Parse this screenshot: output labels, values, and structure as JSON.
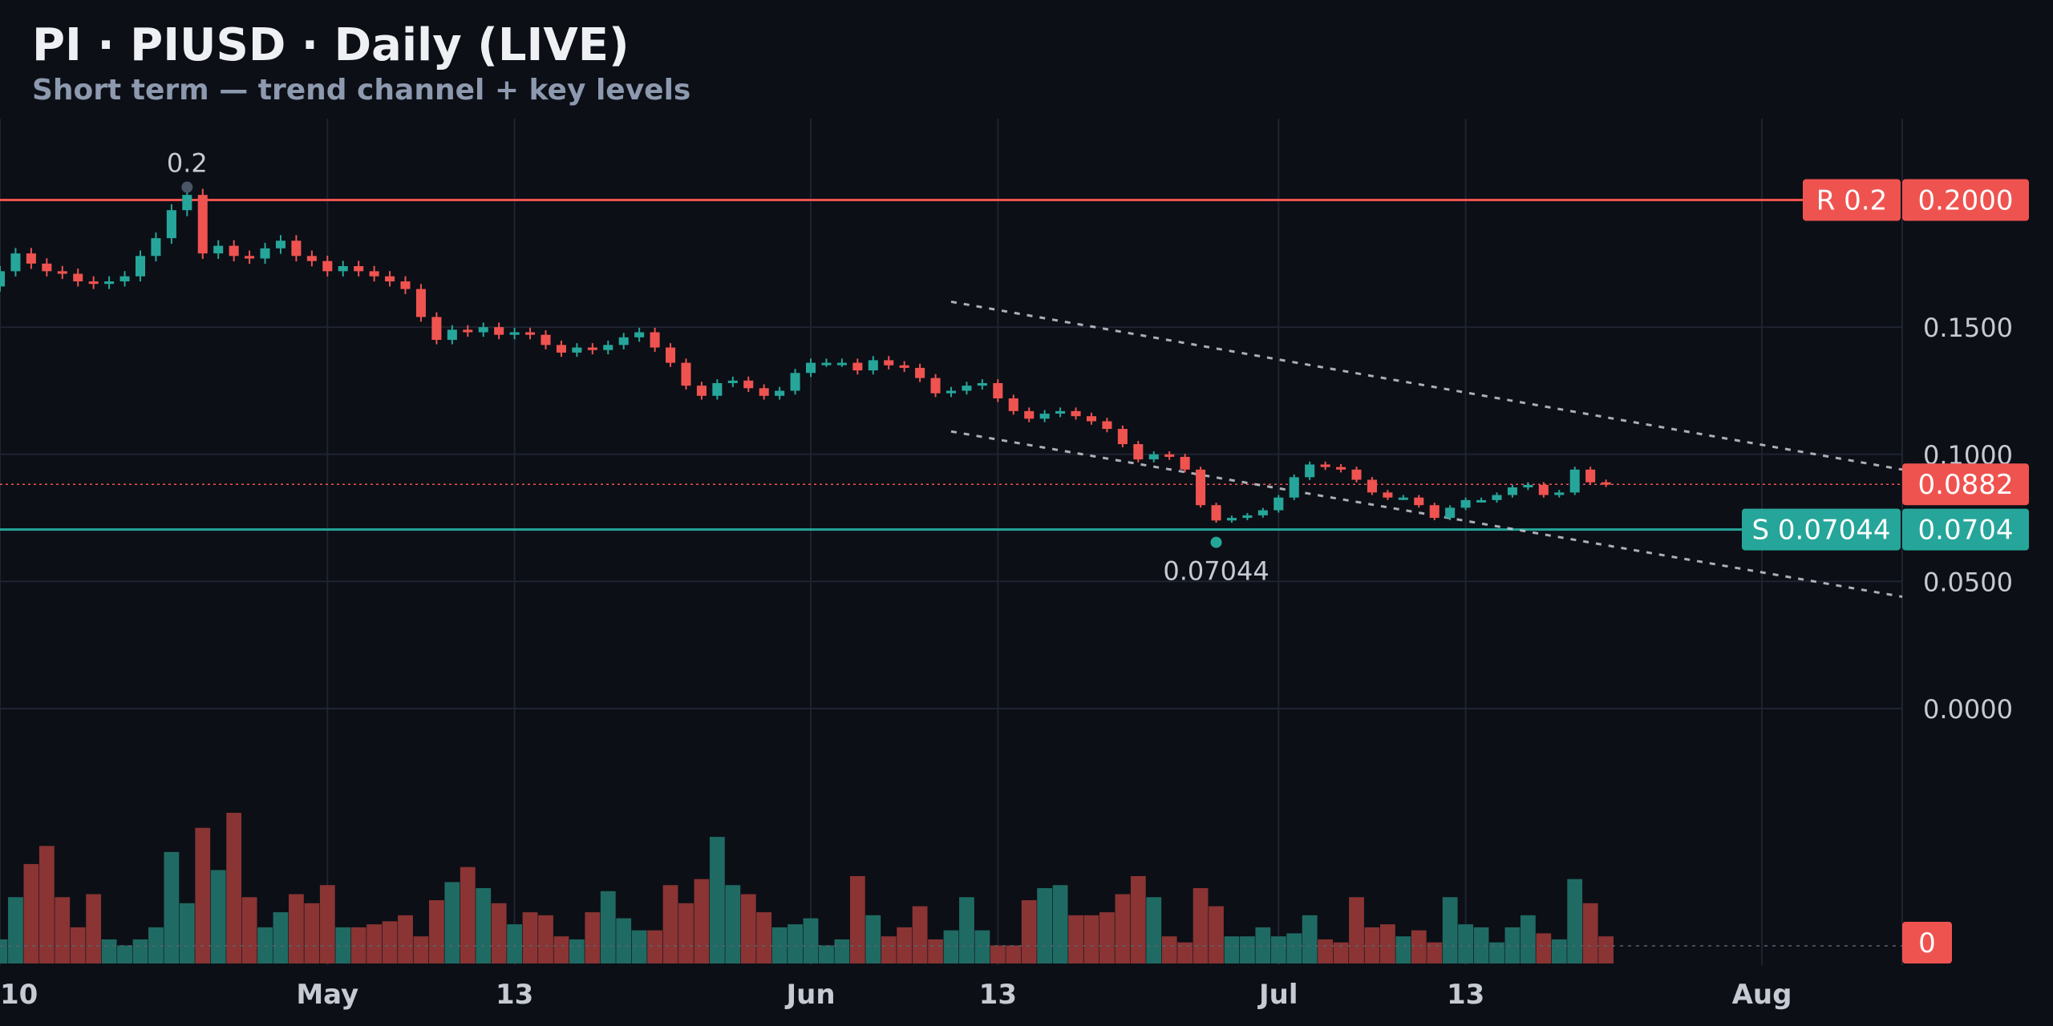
{
  "header": {
    "title": "PI · PIUSD · Daily (LIVE)",
    "subtitle": "Short term — trend channel + key levels"
  },
  "colors": {
    "background": "#0c0f16",
    "grid": "#1e2430",
    "up": "#26a69a",
    "down": "#ef5350",
    "resistance": "#ef5350",
    "support": "#26a69a",
    "channel": "#c9ccd3",
    "volume_up": "#1f6b63",
    "volume_down": "#8a3434",
    "axis_text": "#c5cad3"
  },
  "chart_data": {
    "type": "candlestick",
    "y_ticks": [
      "0.1500",
      "0.1000",
      "0.0500",
      "0.0000"
    ],
    "y_tick_values": [
      0.15,
      0.1,
      0.05,
      0.0
    ],
    "ylim": [
      -0.046,
      0.232
    ],
    "xlim": [
      "2025-04-10",
      "2025-08-10"
    ],
    "x_ticks": [
      {
        "label": "10",
        "date": "2025-04-10"
      },
      {
        "label": "May",
        "date": "2025-05-01"
      },
      {
        "label": "13",
        "date": "2025-05-13"
      },
      {
        "label": "Jun",
        "date": "2025-06-01"
      },
      {
        "label": "13",
        "date": "2025-06-13"
      },
      {
        "label": "Jul",
        "date": "2025-07-01"
      },
      {
        "label": "13",
        "date": "2025-07-13"
      },
      {
        "label": "Aug",
        "date": "2025-08-01"
      }
    ],
    "resistance": {
      "value": 0.2,
      "tag": "R 0.2",
      "price_label": "0.2000",
      "annotation": "0.2"
    },
    "support": {
      "value": 0.07044,
      "tag": "S 0.07044",
      "price_label": "0.0704",
      "annotation": "0.07044"
    },
    "last_price": {
      "value": 0.0882,
      "label": "0.0882"
    },
    "volume_zero_label": "0",
    "channel": {
      "upper": [
        {
          "date": "2025-06-10",
          "value": 0.16
        },
        {
          "date": "2025-08-10",
          "value": 0.094
        }
      ],
      "lower": [
        {
          "date": "2025-06-10",
          "value": 0.109
        },
        {
          "date": "2025-08-10",
          "value": 0.044
        }
      ]
    },
    "closes": [
      0.167,
      0.167,
      0.166,
      0.165,
      0.166,
      0.172,
      0.179,
      0.175,
      0.172,
      0.171,
      0.168,
      0.167,
      0.168,
      0.17,
      0.178,
      0.185,
      0.196,
      0.202,
      0.179,
      0.182,
      0.178,
      0.177,
      0.181,
      0.184,
      0.178,
      0.176,
      0.172,
      0.174,
      0.172,
      0.17,
      0.168,
      0.165,
      0.154,
      0.145,
      0.149,
      0.148,
      0.15,
      0.147,
      0.148,
      0.147,
      0.143,
      0.14,
      0.142,
      0.141,
      0.143,
      0.146,
      0.148,
      0.142,
      0.136,
      0.127,
      0.123,
      0.128,
      0.129,
      0.126,
      0.123,
      0.125,
      0.132,
      0.136,
      0.136,
      0.136,
      0.133,
      0.137,
      0.135,
      0.134,
      0.13,
      0.124,
      0.125,
      0.127,
      0.128,
      0.122,
      0.117,
      0.114,
      0.116,
      0.117,
      0.115,
      0.113,
      0.11,
      0.104,
      0.098,
      0.1,
      0.099,
      0.094,
      0.08,
      0.074,
      0.075,
      0.076,
      0.078,
      0.083,
      0.091,
      0.096,
      0.095,
      0.094,
      0.09,
      0.085,
      0.083,
      0.083,
      0.08,
      0.075,
      0.079,
      0.082,
      0.082,
      0.084,
      0.087,
      0.088,
      0.084,
      0.085,
      0.094,
      0.089,
      0.0882
    ],
    "volumes": [
      0.1,
      0.08,
      0.09,
      0.09,
      0.09,
      0.08,
      0.22,
      0.33,
      0.39,
      0.22,
      0.12,
      0.23,
      0.08,
      0.06,
      0.08,
      0.12,
      0.37,
      0.2,
      0.45,
      0.31,
      0.5,
      0.22,
      0.12,
      0.17,
      0.23,
      0.2,
      0.26,
      0.12,
      0.12,
      0.13,
      0.14,
      0.16,
      0.09,
      0.21,
      0.27,
      0.32,
      0.25,
      0.2,
      0.13,
      0.17,
      0.16,
      0.09,
      0.08,
      0.17,
      0.24,
      0.15,
      0.11,
      0.11,
      0.26,
      0.2,
      0.28,
      0.42,
      0.26,
      0.23,
      0.17,
      0.12,
      0.13,
      0.15,
      0.06,
      0.08,
      0.29,
      0.16,
      0.09,
      0.12,
      0.19,
      0.08,
      0.11,
      0.22,
      0.11,
      0.06,
      0.06,
      0.21,
      0.25,
      0.26,
      0.16,
      0.16,
      0.17,
      0.23,
      0.29,
      0.22,
      0.09,
      0.07,
      0.25,
      0.19,
      0.09,
      0.09,
      0.12,
      0.09,
      0.1,
      0.16,
      0.08,
      0.07,
      0.22,
      0.12,
      0.13,
      0.09,
      0.11,
      0.07,
      0.22,
      0.13,
      0.12,
      0.07,
      0.12,
      0.16,
      0.1,
      0.08,
      0.28,
      0.2,
      0.09
    ],
    "volume_max": 0.5
  }
}
